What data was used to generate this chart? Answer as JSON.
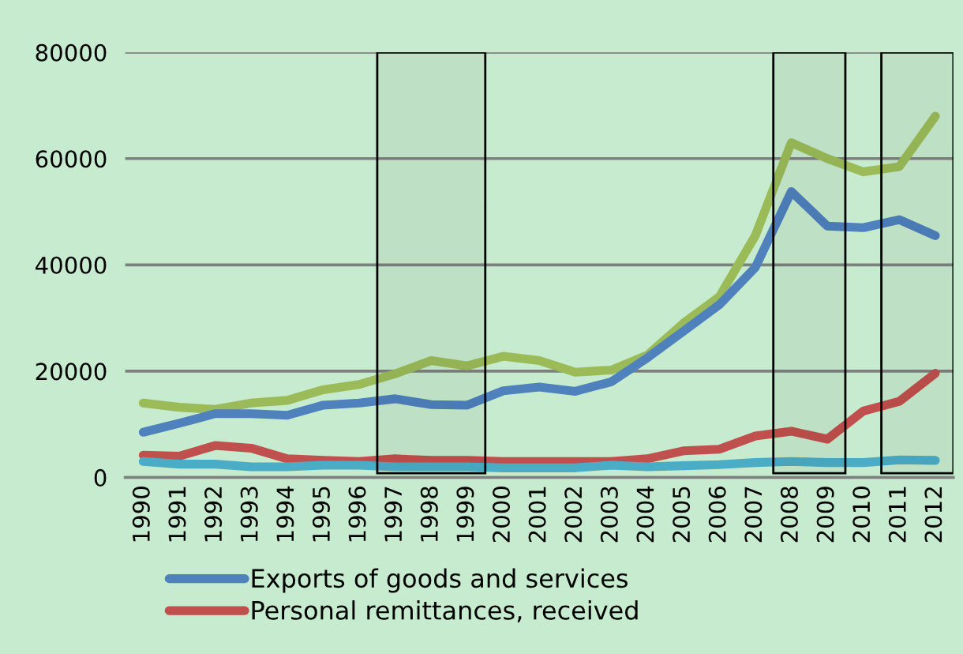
{
  "chart_data": {
    "type": "line",
    "categories": [
      "1990",
      "1991",
      "1992",
      "1993",
      "1994",
      "1995",
      "1996",
      "1997",
      "1998",
      "1999",
      "2000",
      "2001",
      "2002",
      "2003",
      "2004",
      "2005",
      "2006",
      "2007",
      "2008",
      "2009",
      "2010",
      "2011",
      "2012"
    ],
    "series": [
      {
        "color": "#9bbb59",
        "values": [
          14000,
          13200,
          12800,
          14000,
          14500,
          16500,
          17500,
          19500,
          22000,
          21000,
          22800,
          22000,
          19800,
          20200,
          23000,
          29000,
          34000,
          45500,
          63000,
          60000,
          57500,
          58500,
          68000
        ]
      },
      {
        "name": "Exports of goods and services",
        "color": "#4f81bd",
        "values": [
          8500,
          10200,
          12000,
          12000,
          11700,
          13600,
          14000,
          14800,
          13700,
          13600,
          16300,
          17000,
          16200,
          18000,
          22500,
          27500,
          32500,
          39500,
          53800,
          47300,
          47000,
          48500,
          45500
        ]
      },
      {
        "name": "Personal remittances, received",
        "color": "#c0504d",
        "values": [
          4200,
          4000,
          6000,
          5500,
          3500,
          3200,
          3000,
          3500,
          3200,
          3200,
          3000,
          3000,
          3000,
          3000,
          3500,
          5000,
          5300,
          7800,
          8700,
          7200,
          12500,
          14300,
          19600
        ]
      },
      {
        "color": "#4bacc6",
        "values": [
          3000,
          2500,
          2500,
          2000,
          2000,
          2300,
          2300,
          2000,
          2000,
          2000,
          1800,
          1800,
          1800,
          2300,
          2000,
          2200,
          2400,
          2800,
          3000,
          2800,
          2800,
          3300,
          3200
        ]
      }
    ],
    "ylim": [
      0,
      80000
    ],
    "yticks": [
      0,
      20000,
      40000,
      60000,
      80000
    ],
    "grid": "y",
    "legend": "bottom",
    "line_style": "solid",
    "marker": "none",
    "bands": [
      {
        "axis": "x",
        "from": "1997",
        "to": "1999",
        "color": "#000000"
      },
      {
        "axis": "x",
        "from": "2008",
        "to": "2009",
        "color": "#000000"
      },
      {
        "axis": "x",
        "from": "2011",
        "to": "2012",
        "color": "#000000"
      }
    ]
  }
}
